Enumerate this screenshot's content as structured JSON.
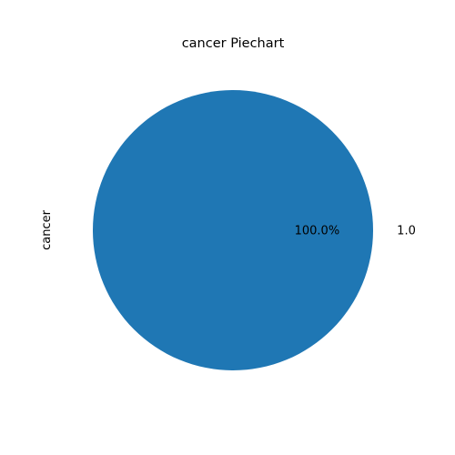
{
  "chart_data": {
    "type": "pie",
    "title": "cancer Piechart",
    "ylabel": "cancer",
    "categories": [
      "1.0"
    ],
    "values": [
      1
    ],
    "percent_labels": [
      "100.0%"
    ],
    "colors": [
      "#1f77b4"
    ],
    "legend": "none"
  }
}
